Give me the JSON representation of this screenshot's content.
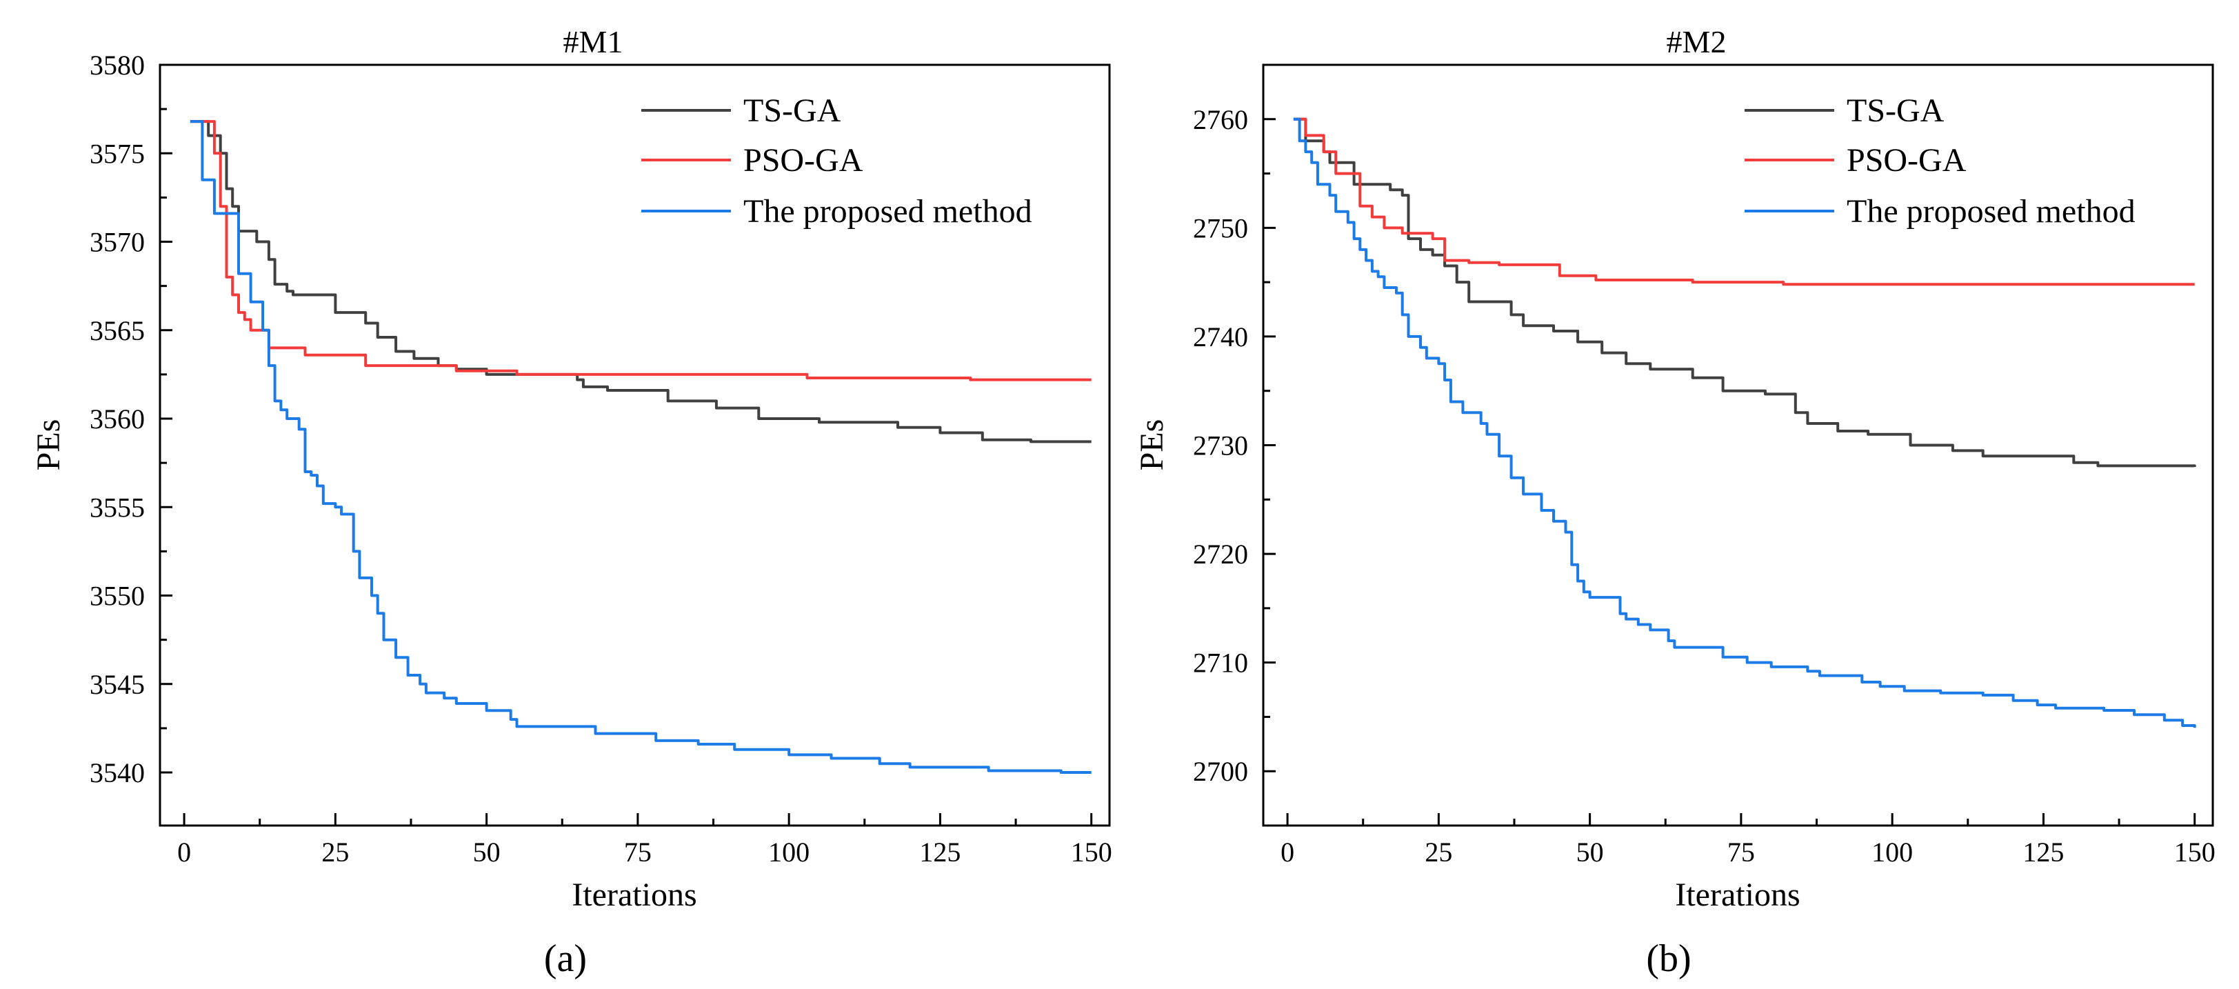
{
  "legend_labels": [
    "TS-GA",
    "PSO-GA",
    "The proposed method"
  ],
  "series_colors": {
    "TS-GA": "#404040",
    "PSO-GA": "#f23c3c",
    "The proposed method": "#1c7be6"
  },
  "chart_data": [
    {
      "type": "line",
      "title": "#M1",
      "caption": "(a)",
      "xlabel": "Iterations",
      "ylabel": "PEs",
      "xlim": [
        -4,
        153
      ],
      "ylim": [
        3537,
        3580
      ],
      "xticks": [
        0,
        25,
        50,
        75,
        100,
        125,
        150
      ],
      "yticks": [
        3540,
        3545,
        3550,
        3555,
        3560,
        3565,
        3570,
        3575,
        3580
      ],
      "legend_position": "top-right",
      "series": [
        {
          "name": "TS-GA",
          "step": true,
          "points": [
            [
              1,
              3576.8
            ],
            [
              4,
              3576
            ],
            [
              6,
              3575
            ],
            [
              7,
              3573
            ],
            [
              8,
              3572
            ],
            [
              9,
              3570.6
            ],
            [
              12,
              3570
            ],
            [
              14,
              3569
            ],
            [
              15,
              3567.6
            ],
            [
              17,
              3567.2
            ],
            [
              18,
              3567
            ],
            [
              25,
              3566
            ],
            [
              30,
              3565.4
            ],
            [
              32,
              3564.6
            ],
            [
              35,
              3563.8
            ],
            [
              38,
              3563.4
            ],
            [
              42,
              3563
            ],
            [
              45,
              3562.8
            ],
            [
              50,
              3562.5
            ],
            [
              65,
              3562.2
            ],
            [
              66,
              3561.8
            ],
            [
              70,
              3561.6
            ],
            [
              80,
              3561
            ],
            [
              88,
              3560.6
            ],
            [
              95,
              3560
            ],
            [
              105,
              3559.8
            ],
            [
              118,
              3559.5
            ],
            [
              125,
              3559.2
            ],
            [
              132,
              3558.8
            ],
            [
              140,
              3558.7
            ],
            [
              150,
              3558.7
            ]
          ]
        },
        {
          "name": "PSO-GA",
          "step": true,
          "points": [
            [
              1,
              3576.8
            ],
            [
              5,
              3575
            ],
            [
              6,
              3572
            ],
            [
              7,
              3568
            ],
            [
              8,
              3567
            ],
            [
              9,
              3566
            ],
            [
              10,
              3565.6
            ],
            [
              11,
              3565
            ],
            [
              14,
              3564
            ],
            [
              20,
              3563.6
            ],
            [
              30,
              3563
            ],
            [
              45,
              3562.7
            ],
            [
              55,
              3562.5
            ],
            [
              103,
              3562.3
            ],
            [
              130,
              3562.2
            ],
            [
              150,
              3562.2
            ]
          ]
        },
        {
          "name": "The proposed method",
          "step": true,
          "points": [
            [
              1,
              3576.8
            ],
            [
              3,
              3573.5
            ],
            [
              5,
              3571.6
            ],
            [
              9,
              3568.2
            ],
            [
              11,
              3566.6
            ],
            [
              13,
              3565
            ],
            [
              14,
              3563
            ],
            [
              15,
              3561
            ],
            [
              16,
              3560.5
            ],
            [
              17,
              3560
            ],
            [
              19,
              3559.4
            ],
            [
              20,
              3557
            ],
            [
              21,
              3556.8
            ],
            [
              22,
              3556.2
            ],
            [
              23,
              3555.2
            ],
            [
              25,
              3555
            ],
            [
              26,
              3554.6
            ],
            [
              28,
              3552.5
            ],
            [
              29,
              3551
            ],
            [
              31,
              3550
            ],
            [
              32,
              3549
            ],
            [
              33,
              3547.5
            ],
            [
              35,
              3546.5
            ],
            [
              37,
              3545.5
            ],
            [
              39,
              3545
            ],
            [
              40,
              3544.5
            ],
            [
              43,
              3544.2
            ],
            [
              45,
              3543.9
            ],
            [
              50,
              3543.5
            ],
            [
              54,
              3543
            ],
            [
              55,
              3542.6
            ],
            [
              68,
              3542.2
            ],
            [
              78,
              3541.8
            ],
            [
              85,
              3541.6
            ],
            [
              91,
              3541.3
            ],
            [
              100,
              3541
            ],
            [
              107,
              3540.8
            ],
            [
              115,
              3540.5
            ],
            [
              120,
              3540.3
            ],
            [
              133,
              3540.1
            ],
            [
              145,
              3540
            ],
            [
              150,
              3540
            ]
          ]
        }
      ]
    },
    {
      "type": "line",
      "title": "#M2",
      "caption": "(b)",
      "xlabel": "Iterations",
      "ylabel": "PEs",
      "xlim": [
        -4,
        153
      ],
      "ylim": [
        2695,
        2765
      ],
      "xticks": [
        0,
        25,
        50,
        75,
        100,
        125,
        150
      ],
      "yticks": [
        2700,
        2710,
        2720,
        2730,
        2740,
        2750,
        2760
      ],
      "legend_position": "top-right",
      "series": [
        {
          "name": "TS-GA",
          "step": true,
          "points": [
            [
              1,
              2760
            ],
            [
              3,
              2758
            ],
            [
              6,
              2757
            ],
            [
              7,
              2756
            ],
            [
              11,
              2754
            ],
            [
              17,
              2753.5
            ],
            [
              19,
              2753
            ],
            [
              20,
              2749
            ],
            [
              22,
              2748
            ],
            [
              24,
              2747.5
            ],
            [
              26,
              2746.5
            ],
            [
              28,
              2745
            ],
            [
              30,
              2743.2
            ],
            [
              37,
              2742
            ],
            [
              39,
              2741
            ],
            [
              44,
              2740.5
            ],
            [
              48,
              2739.5
            ],
            [
              52,
              2738.5
            ],
            [
              56,
              2737.5
            ],
            [
              60,
              2737
            ],
            [
              67,
              2736.2
            ],
            [
              72,
              2735
            ],
            [
              79,
              2734.7
            ],
            [
              84,
              2733
            ],
            [
              86,
              2732
            ],
            [
              91,
              2731.3
            ],
            [
              96,
              2731
            ],
            [
              103,
              2730
            ],
            [
              110,
              2729.5
            ],
            [
              115,
              2729
            ],
            [
              130,
              2728.4
            ],
            [
              134,
              2728.1
            ],
            [
              150,
              2728
            ]
          ]
        },
        {
          "name": "PSO-GA",
          "step": true,
          "points": [
            [
              1,
              2760
            ],
            [
              3,
              2758.5
            ],
            [
              6,
              2757
            ],
            [
              8,
              2755
            ],
            [
              12,
              2752
            ],
            [
              14,
              2751
            ],
            [
              16,
              2750
            ],
            [
              19,
              2749.5
            ],
            [
              24,
              2749
            ],
            [
              26,
              2747
            ],
            [
              30,
              2746.8
            ],
            [
              35,
              2746.6
            ],
            [
              45,
              2745.6
            ],
            [
              51,
              2745.2
            ],
            [
              67,
              2745
            ],
            [
              82,
              2744.8
            ],
            [
              150,
              2744.8
            ]
          ]
        },
        {
          "name": "The proposed method",
          "step": true,
          "points": [
            [
              1,
              2760
            ],
            [
              2,
              2758
            ],
            [
              3,
              2757
            ],
            [
              4,
              2756
            ],
            [
              5,
              2754
            ],
            [
              7,
              2753
            ],
            [
              8,
              2751.5
            ],
            [
              10,
              2750.5
            ],
            [
              11,
              2749
            ],
            [
              12,
              2748
            ],
            [
              13,
              2747
            ],
            [
              14,
              2746
            ],
            [
              15,
              2745.5
            ],
            [
              16,
              2744.5
            ],
            [
              18,
              2744
            ],
            [
              19,
              2742
            ],
            [
              20,
              2740
            ],
            [
              22,
              2739
            ],
            [
              23,
              2738
            ],
            [
              25,
              2737.5
            ],
            [
              26,
              2736
            ],
            [
              27,
              2734
            ],
            [
              29,
              2733
            ],
            [
              32,
              2732
            ],
            [
              33,
              2731
            ],
            [
              35,
              2729
            ],
            [
              37,
              2727
            ],
            [
              39,
              2725.5
            ],
            [
              42,
              2724
            ],
            [
              44,
              2723
            ],
            [
              46,
              2722
            ],
            [
              47,
              2719
            ],
            [
              48,
              2717.5
            ],
            [
              49,
              2716.5
            ],
            [
              50,
              2716
            ],
            [
              55,
              2714.5
            ],
            [
              56,
              2714
            ],
            [
              58,
              2713.5
            ],
            [
              60,
              2713
            ],
            [
              63,
              2712
            ],
            [
              64,
              2711.4
            ],
            [
              72,
              2710.5
            ],
            [
              76,
              2710
            ],
            [
              80,
              2709.6
            ],
            [
              86,
              2709.2
            ],
            [
              88,
              2708.8
            ],
            [
              95,
              2708.2
            ],
            [
              98,
              2707.8
            ],
            [
              102,
              2707.4
            ],
            [
              108,
              2707.2
            ],
            [
              115,
              2707
            ],
            [
              120,
              2706.5
            ],
            [
              124,
              2706.1
            ],
            [
              127,
              2705.8
            ],
            [
              135,
              2705.6
            ],
            [
              140,
              2705.2
            ],
            [
              145,
              2704.7
            ],
            [
              148,
              2704.2
            ],
            [
              150,
              2704
            ]
          ]
        }
      ]
    }
  ]
}
